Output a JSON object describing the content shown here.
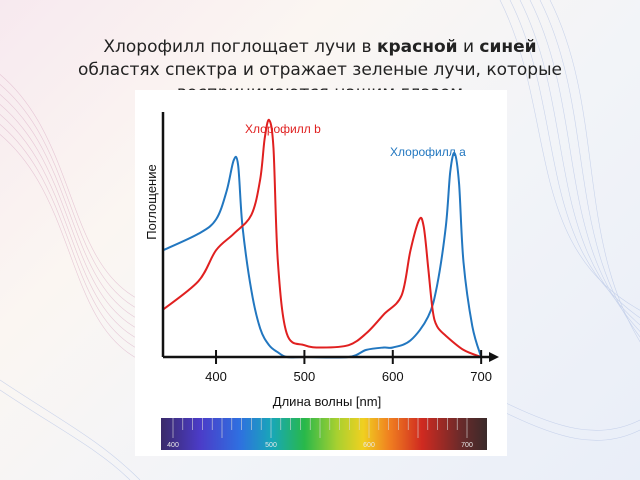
{
  "caption": {
    "part1": "Хлорофилл поглощает лучи в ",
    "red_word": "красной",
    "part2": " и ",
    "blue_word": "синей",
    "line2": "областях спектра и отражает зеленые лучи, которые",
    "line3": "воспринимаются нашим глазом"
  },
  "colors": {
    "chlorophyll_a": "#2277c0",
    "chlorophyll_b": "#e02020",
    "axis": "#111111"
  },
  "chart_data": {
    "type": "line",
    "title": "",
    "xlabel": "Длина волны [nm]",
    "ylabel": "Поглощение",
    "xlim": [
      340,
      710
    ],
    "ylim": [
      0,
      1
    ],
    "x_ticks": [
      400,
      500,
      600,
      700
    ],
    "spectrum_ticks": [
      "400",
      "500",
      "600",
      "700"
    ],
    "grid": false,
    "series": [
      {
        "name": "Хлорофилл a",
        "color": "#2277c0",
        "x": [
          340,
          380,
          400,
          412,
          420,
          425,
          430,
          440,
          450,
          460,
          470,
          480,
          500,
          550,
          570,
          590,
          600,
          620,
          640,
          650,
          660,
          665,
          670,
          675,
          680,
          690,
          700
        ],
        "y": [
          0.45,
          0.52,
          0.58,
          0.7,
          0.83,
          0.81,
          0.55,
          0.28,
          0.12,
          0.05,
          0.02,
          0.0,
          0.0,
          0.0,
          0.03,
          0.04,
          0.04,
          0.07,
          0.17,
          0.3,
          0.55,
          0.78,
          0.86,
          0.73,
          0.4,
          0.13,
          0.0
        ]
      },
      {
        "name": "Хлорофилл b",
        "color": "#e02020",
        "x": [
          340,
          380,
          400,
          420,
          440,
          450,
          455,
          460,
          465,
          470,
          480,
          500,
          520,
          550,
          570,
          590,
          610,
          620,
          630,
          635,
          640,
          645,
          650,
          660,
          680,
          700
        ],
        "y": [
          0.2,
          0.32,
          0.45,
          0.52,
          0.6,
          0.75,
          0.92,
          1.0,
          0.88,
          0.4,
          0.1,
          0.05,
          0.04,
          0.05,
          0.1,
          0.18,
          0.26,
          0.45,
          0.58,
          0.55,
          0.38,
          0.2,
          0.13,
          0.09,
          0.03,
          0.0
        ]
      }
    ],
    "annotations": [
      "Хлорофилл b",
      "Хлорофилл a"
    ]
  }
}
